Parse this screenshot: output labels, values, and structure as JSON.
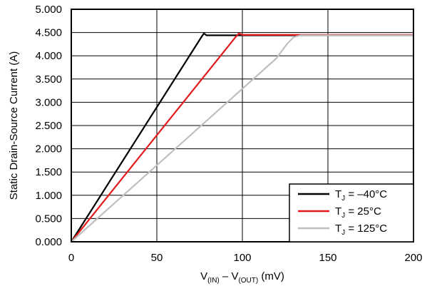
{
  "chart_data": {
    "type": "line",
    "title": "",
    "ylabel": "Static Drain-Source Current (A)",
    "xlabel_parts": {
      "v1": "V",
      "v1_sub": "(IN)",
      "dash": " – V",
      "v2_sub": "(OUT)",
      "unit": " (mV)"
    },
    "xlim": [
      0,
      200
    ],
    "ylim": [
      0,
      5
    ],
    "x_ticks": [
      "0",
      "50",
      "100",
      "150",
      "200"
    ],
    "x_tick_values": [
      0,
      50,
      100,
      150,
      200
    ],
    "y_ticks": [
      "0.000",
      "0.500",
      "1.000",
      "1.500",
      "2.000",
      "2.500",
      "3.000",
      "3.500",
      "4.000",
      "4.500",
      "5.000"
    ],
    "y_tick_values": [
      0,
      0.5,
      1,
      1.5,
      2,
      2.5,
      3,
      3.5,
      4,
      4.5,
      5
    ],
    "grid": true,
    "legend_position": "bottom-right",
    "series": [
      {
        "name": "T_J = –40°C",
        "label_main": "T",
        "label_sub": "J",
        "label_rest": " = –40°C",
        "color": "#000000",
        "x": [
          0,
          76,
          77.5,
          79,
          200
        ],
        "y": [
          0,
          4.4,
          4.48,
          4.44,
          4.44
        ]
      },
      {
        "name": "T_J = 25°C",
        "label_main": "T",
        "label_sub": "J",
        "label_rest": " = 25°C",
        "color": "#e31a1c",
        "x": [
          0,
          96,
          98,
          100,
          200
        ],
        "y": [
          0,
          4.4,
          4.48,
          4.45,
          4.45
        ]
      },
      {
        "name": "T_J = 125°C",
        "label_main": "T",
        "label_sub": "J",
        "label_rest": " = 125°C",
        "color": "#bfbfbf",
        "x": [
          0,
          120,
          126,
          130,
          134,
          200
        ],
        "y": [
          0,
          3.95,
          4.25,
          4.4,
          4.44,
          4.44
        ]
      }
    ]
  }
}
